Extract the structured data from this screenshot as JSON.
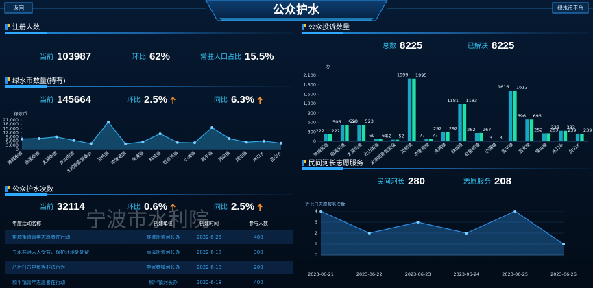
{
  "header": {
    "back": "返回",
    "title": "公众护水",
    "platform": "绿水币平台"
  },
  "panels": [
    {
      "title": "注册人数",
      "stats": [
        {
          "label": "当前",
          "value": "103987"
        },
        {
          "label": "环比",
          "value": "62%"
        },
        {
          "label": "常驻人口占比",
          "value": "15.5%"
        }
      ]
    },
    {
      "title": "绿水币数量(持有)",
      "stats": [
        {
          "label": "当前",
          "value": "145664"
        },
        {
          "label": "环比",
          "value": "2.5%",
          "trend": "up"
        },
        {
          "label": "同比",
          "value": "6.3%",
          "trend": "up"
        }
      ]
    },
    {
      "title": "公众护水次数",
      "stats": [
        {
          "label": "当前",
          "value": "32114"
        },
        {
          "label": "环比",
          "value": "0.6%",
          "trend": "up"
        },
        {
          "label": "同比",
          "value": "2.5%",
          "trend": "up"
        }
      ]
    },
    {
      "title": "公众投诉数量",
      "stats": [
        {
          "label": "总数",
          "value": "8225"
        },
        {
          "label": "已解决",
          "value": "8225"
        }
      ]
    },
    {
      "title": "民间河长志愿服务",
      "stats": [
        {
          "label": "民间河长",
          "value": "280"
        },
        {
          "label": "志愿服务",
          "value": "208"
        }
      ]
    }
  ],
  "table": {
    "columns": [
      "年度活动名称",
      "创建单位",
      "创建时间",
      "参与人数"
    ],
    "rows": [
      [
        "雉城街道青年志愿者在行动",
        "雉城街道河长办",
        "2022-6-25",
        "400"
      ],
      [
        "五水共治人人受益，保护环境处处留",
        "画溪街道河长办",
        "2022-6-18",
        "300"
      ],
      [
        "严厉打击电鱼等非法行为",
        "李家巷镇河长办",
        "2022-6-18",
        "200"
      ],
      [
        "和平镇青年志愿者在行动",
        "和平镇河长办",
        "2022-6-18",
        "400"
      ]
    ]
  },
  "watermark": "宁波市水利院",
  "chart_data": [
    {
      "type": "area",
      "ylabel": "绿水币",
      "categories": [
        "雉城街道",
        "画溪街道",
        "太湖街道",
        "龙山街道",
        "太湖图影管委会",
        "洪桥镇",
        "李家巷镇",
        "夹浦镇",
        "林城镇",
        "虹星桥镇",
        "小浦镇",
        "和平镇",
        "泗安镇",
        "煤山镇",
        "水口乡",
        "吕山乡"
      ],
      "values": [
        7500,
        7800,
        9000,
        6500,
        4200,
        19500,
        4000,
        5500,
        11200,
        5000,
        4800,
        15600,
        7800,
        5200,
        6000,
        4500
      ],
      "color": "#2fa8e6",
      "ylim": [
        0,
        21000
      ],
      "yticks": [
        0,
        {
          "value": 3000,
          "label": "3,000"
        },
        {
          "value": 6000,
          "label": "6,000"
        },
        {
          "value": 9000,
          "label": "9,000"
        },
        {
          "value": 12000,
          "label": "12,000"
        },
        {
          "value": 15000,
          "label": "15,000"
        },
        {
          "value": 18000,
          "label": "18,000"
        },
        {
          "value": 21000,
          "label": "21,000"
        }
      ],
      "grid": false
    },
    {
      "type": "bar",
      "ylabel": "次",
      "categories": [
        "雉城街道",
        "画溪街道",
        "太湖街道",
        "龙山街道",
        "太湖图影管委会",
        "洪桥镇",
        "李家巷镇",
        "夹浦镇",
        "林城镇",
        "虹星桥镇",
        "小浦镇",
        "和平镇",
        "泗安镇",
        "煤山镇",
        "水口乡",
        "吕山乡"
      ],
      "series": [
        {
          "color": "#1aa7c4",
          "values": [
            222,
            506,
            523,
            69,
            52,
            1999,
            77,
            292,
            1181,
            262,
            3,
            1616,
            696,
            252,
            333,
            239
          ]
        },
        {
          "color": "#1fe0a6",
          "values": [
            222,
            506,
            523,
            69,
            52,
            1995,
            77,
            292,
            1183,
            267,
            3,
            1612,
            695,
            253,
            333,
            239
          ]
        }
      ],
      "ylim": [
        0,
        2100
      ],
      "yticks": [
        0,
        300,
        600,
        900,
        {
          "value": 1200,
          "label": "1,200"
        },
        {
          "value": 1500,
          "label": "1,500"
        },
        {
          "value": 1800,
          "label": "1,800"
        },
        {
          "value": 2100,
          "label": "2,100"
        }
      ],
      "grid": false
    },
    {
      "type": "area",
      "title": "近七日志愿服务次数",
      "categories": [
        "2023-06-21",
        "2023-06-22",
        "2023-06-23",
        "2023-06-24",
        "2023-06-25",
        "2023-06-26"
      ],
      "values": [
        4,
        2,
        3,
        2,
        4,
        1
      ],
      "color": "#2f8fe6",
      "ylim": [
        0,
        4
      ],
      "yticks": [
        0,
        1,
        2,
        3,
        4
      ],
      "grid": true
    }
  ]
}
